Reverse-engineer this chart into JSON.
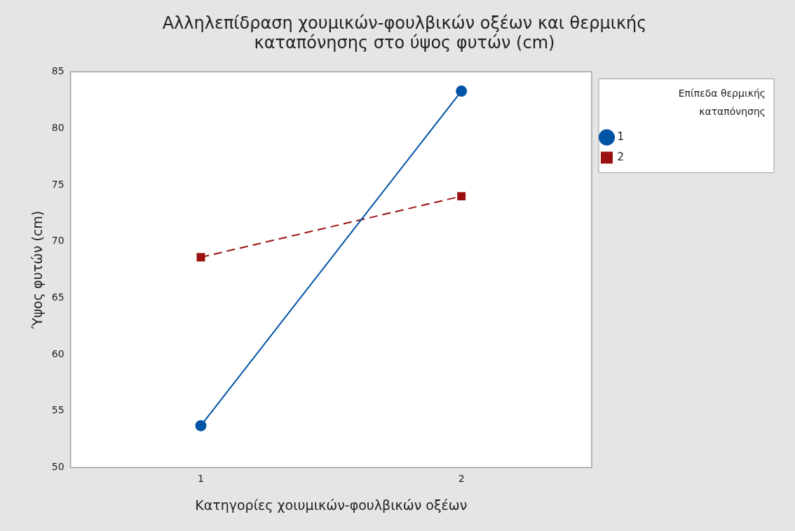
{
  "chart_data": {
    "type": "line",
    "title": "Αλληλεπίδραση χουμικών-φουλβικών οξέων και θερμικής καταπόνησης στο ύψος φυτών (cm)",
    "xlabel": "Κατηγορίες χοιυμικών-φουλβικών οξέων",
    "ylabel": "Ύψος φυτών (cm)",
    "legend_title": "Επίπεδα θερμικής καταπόνησης",
    "categories": [
      "1",
      "2"
    ],
    "series": [
      {
        "name": "1",
        "color": "#0054a6",
        "values": [
          53.7,
          83.3
        ],
        "marker": "circle",
        "line_style": "solid"
      },
      {
        "name": "2",
        "color": "#9b1111",
        "values": [
          68.6,
          74.0
        ],
        "marker": "square",
        "line_style": "dashed"
      }
    ],
    "ylim": [
      50,
      85
    ],
    "yticks": [
      50,
      55,
      60,
      65,
      70,
      75,
      80,
      85
    ],
    "grid": false,
    "legend": "top right"
  }
}
